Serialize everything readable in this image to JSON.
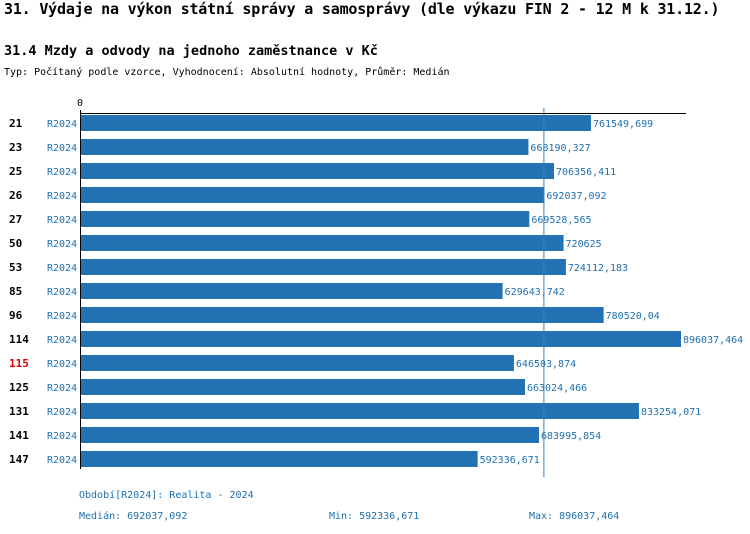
{
  "title": "31. Výdaje na výkon státní správy a samosprávy (dle výkazu FIN 2 - 12 M k 31.12.)",
  "subtitle": "31.4 Mzdy a odvody na jednoho zaměstnance v Kč",
  "typ_line": "Typ: Počítaný podle vzorce, Vyhodnocení: Absolutní hodnoty, Průměr: Medián",
  "colors": {
    "bar": "#2272b4",
    "label": "#1f6fb0",
    "highlight": "#dd0000",
    "median_line": "#3a7fc0"
  },
  "chart_data": {
    "type": "bar",
    "orientation": "horizontal",
    "axis_zero_label": "0",
    "period_label": "R2024",
    "categories": [
      "21",
      "23",
      "25",
      "26",
      "27",
      "50",
      "53",
      "85",
      "96",
      "114",
      "115",
      "125",
      "131",
      "141",
      "147"
    ],
    "values": [
      761549.699,
      668190.327,
      706356.411,
      692037.092,
      669528.565,
      720625,
      724112.183,
      629643.742,
      780520.04,
      896037.464,
      646503.874,
      663024.466,
      833254.071,
      683995.854,
      592336.671
    ],
    "value_labels": [
      "761549,699",
      "668190,327",
      "706356,411",
      "692037,092",
      "669528,565",
      "720625",
      "724112,183",
      "629643,742",
      "780520,04",
      "896037,464",
      "646503,874",
      "663024,466",
      "833254,071",
      "683995,854",
      "592336,671"
    ],
    "highlighted_category": "115",
    "median": 692037.092,
    "xlim": [
      0,
      896037.464
    ]
  },
  "footer": {
    "period": "Období[R2024]: Realita - 2024",
    "median": "Medián: 692037,092",
    "min": "Min: 592336,671",
    "max": "Max: 896037,464"
  }
}
